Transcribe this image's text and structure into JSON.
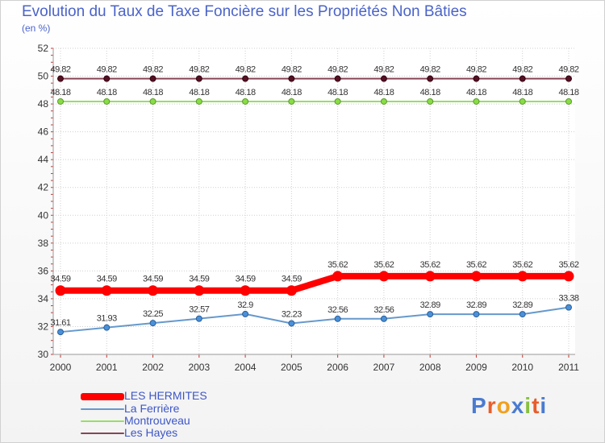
{
  "title": "Evolution du Taux de Taxe Foncière sur les Propriétés Non Bâties",
  "subtitle": "(en %)",
  "logo": "Proxiti",
  "chart_data": {
    "type": "line",
    "categories": [
      "2000",
      "2001",
      "2002",
      "2003",
      "2004",
      "2005",
      "2006",
      "2007",
      "2008",
      "2009",
      "2010",
      "2011"
    ],
    "ylim": [
      30,
      52
    ],
    "yticks": [
      30,
      32,
      34,
      36,
      38,
      40,
      42,
      44,
      46,
      48,
      50,
      52
    ],
    "grid": true,
    "legend_position": "bottom-left",
    "series": [
      {
        "name": "LES HERMITES",
        "color": "#ff0000",
        "values": [
          34.59,
          34.59,
          34.59,
          34.59,
          34.59,
          34.59,
          35.62,
          35.62,
          35.62,
          35.62,
          35.62,
          35.62
        ],
        "labels": [
          "34.59",
          "34.59",
          "34.59",
          "34.59",
          "34.59",
          "34.59",
          "35.62",
          "35.62",
          "35.62",
          "35.62",
          "35.62",
          "35.62"
        ]
      },
      {
        "name": "La Ferrière",
        "color": "#6699cc",
        "values": [
          31.61,
          31.93,
          32.25,
          32.57,
          32.9,
          32.23,
          32.56,
          32.56,
          32.89,
          32.89,
          32.89,
          33.38
        ],
        "labels": [
          "31.61",
          "31.93",
          "32.25",
          "32.57",
          "32.9",
          "32.23",
          "32.56",
          "32.56",
          "32.89",
          "32.89",
          "32.89",
          "33.38"
        ]
      },
      {
        "name": "Montrouveau",
        "color": "#99dd66",
        "values": [
          48.18,
          48.18,
          48.18,
          48.18,
          48.18,
          48.18,
          48.18,
          48.18,
          48.18,
          48.18,
          48.18,
          48.18
        ],
        "labels": [
          "48.18",
          "48.18",
          "48.18",
          "48.18",
          "48.18",
          "48.18",
          "48.18",
          "48.18",
          "48.18",
          "48.18",
          "48.18",
          "48.18"
        ]
      },
      {
        "name": "Les Hayes",
        "color": "#884455",
        "values": [
          49.82,
          49.82,
          49.82,
          49.82,
          49.82,
          49.82,
          49.82,
          49.82,
          49.82,
          49.82,
          49.82,
          49.82
        ],
        "labels": [
          "49.82",
          "49.82",
          "49.82",
          "49.82",
          "49.82",
          "49.82",
          "49.82",
          "49.82",
          "49.82",
          "49.82",
          "49.82",
          "49.82"
        ]
      }
    ]
  }
}
